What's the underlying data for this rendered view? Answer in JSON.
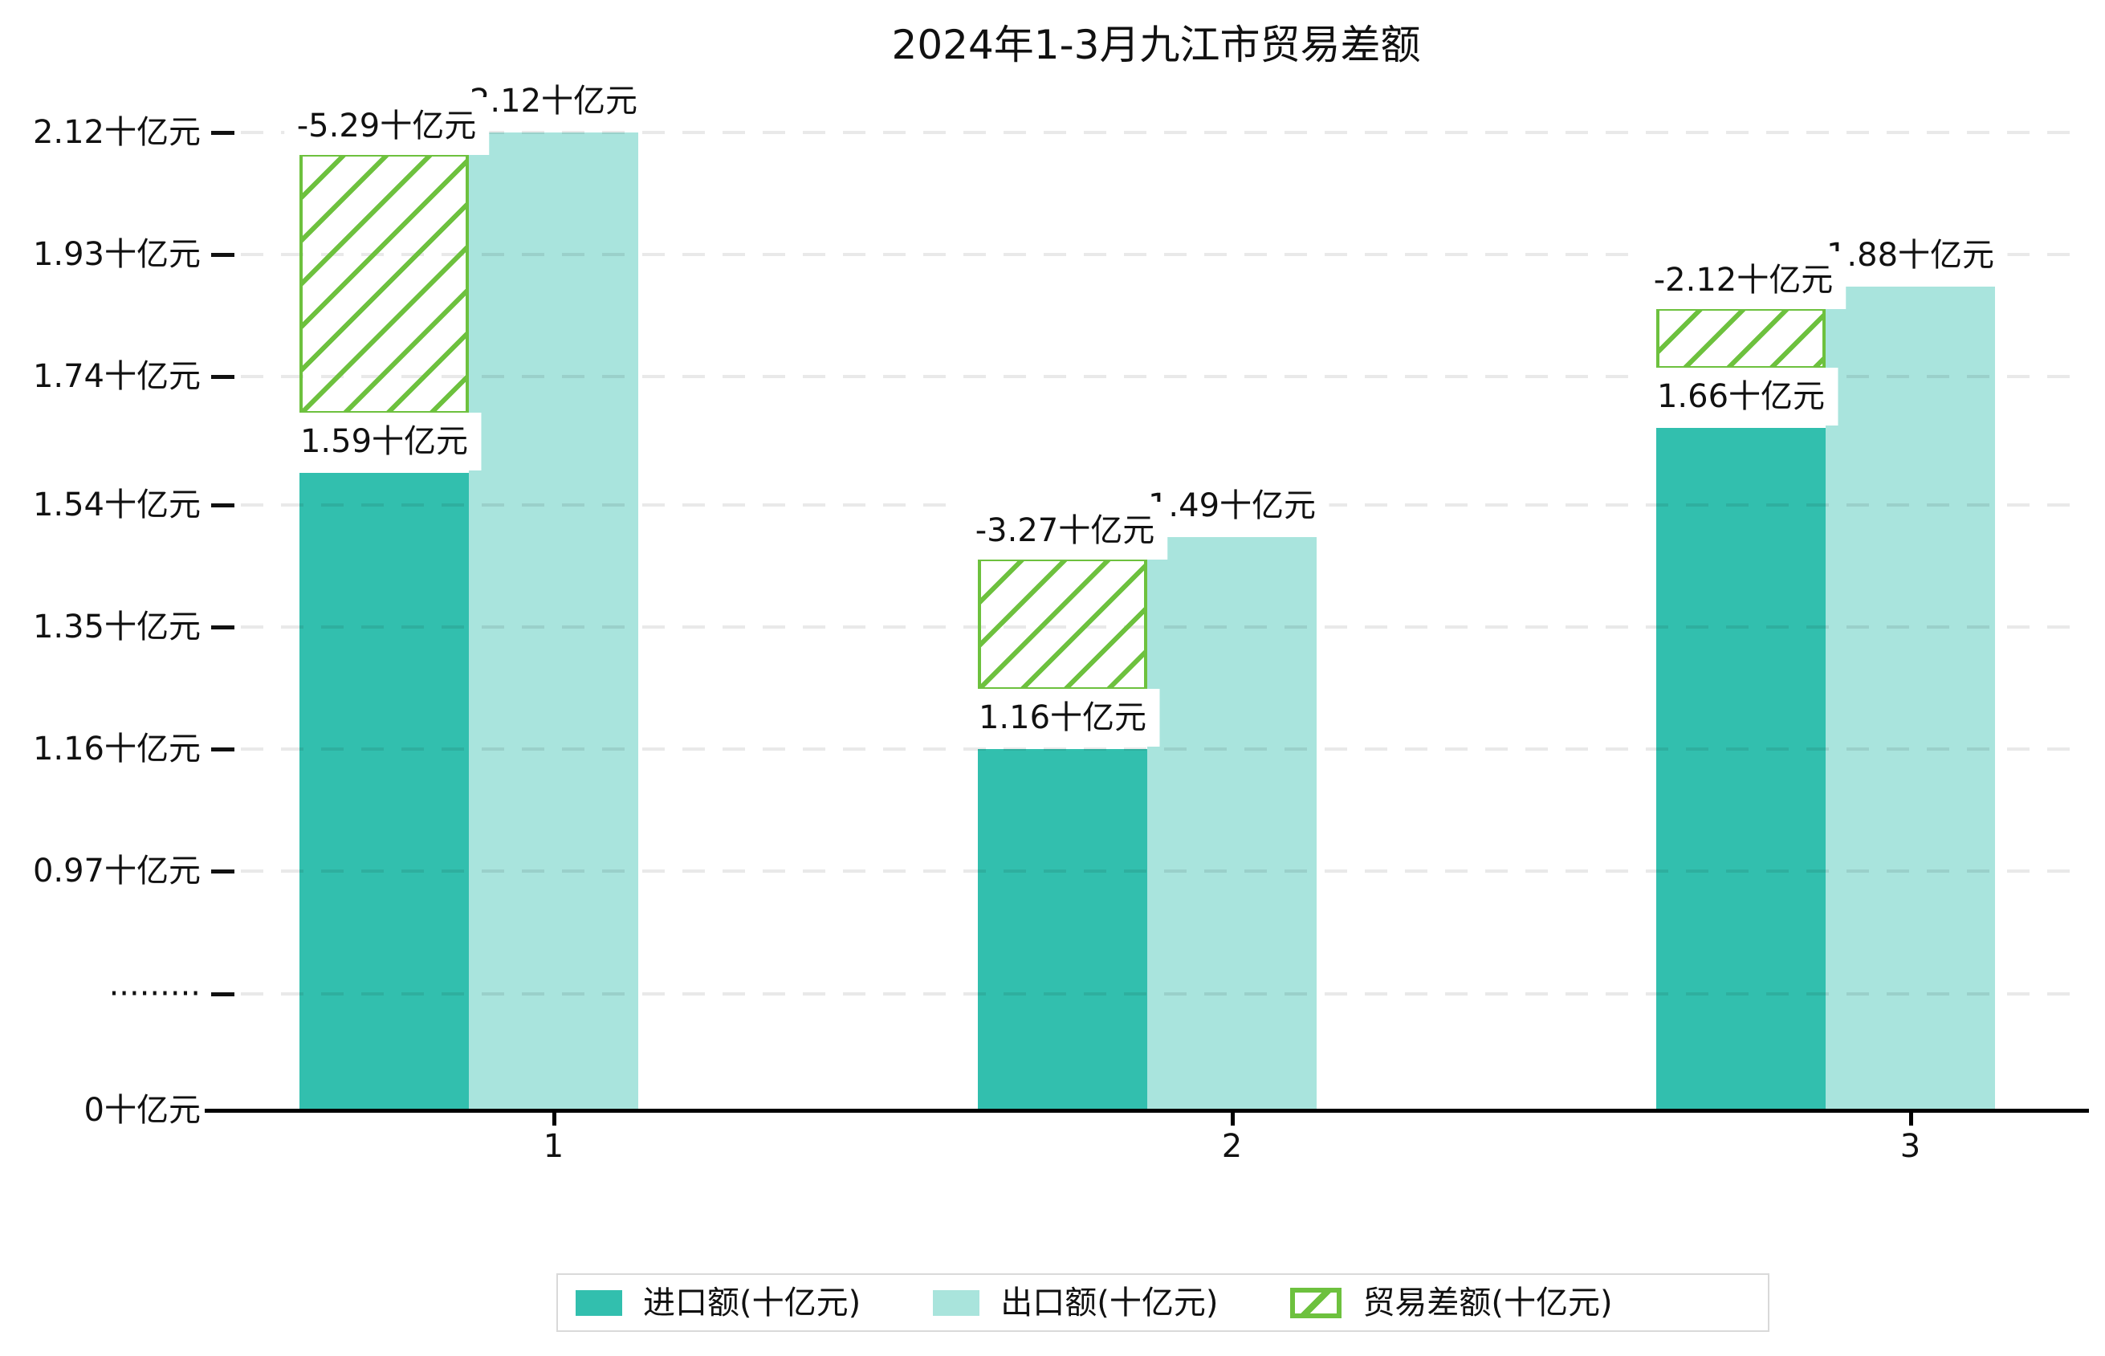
{
  "title": "2024年1-3月九江市贸易差额",
  "colors": {
    "import_bar": "#32bfae",
    "export_bar": "#a9e4dc",
    "export_bar_rgba": "rgba(50,191,174,0.42)",
    "trade_balance_green": "#6dc13e",
    "gridline": "rgba(0,0,0,0.085)",
    "axis": "#000000",
    "legend_border": "#d9d9d9",
    "text": "#111111"
  },
  "chart_data": {
    "type": "bar",
    "title": "2024年1-3月九江市贸易差额",
    "categories": [
      "1",
      "2",
      "3"
    ],
    "series": [
      {
        "name": "进口额(十亿元)",
        "role": "import",
        "values": [
          1.59,
          1.16,
          1.66
        ],
        "labels": [
          "1.59十亿元",
          "1.16十亿元",
          "1.66十亿元"
        ],
        "color": "#32bfae",
        "style": "solid"
      },
      {
        "name": "出口额(十亿元)",
        "role": "export",
        "values": [
          2.12,
          1.49,
          1.88
        ],
        "labels": [
          "2.12十亿元",
          "1.49十亿元",
          "1.88十亿元"
        ],
        "color": "#a9e4dc",
        "style": "solid-translucent"
      },
      {
        "name": "贸易差额(十亿元)",
        "role": "trade-balance",
        "values": [
          -5.29,
          -3.27,
          -2.12
        ],
        "labels": [
          "-5.29十亿元",
          "-3.27十亿元",
          "-2.12十亿元"
        ],
        "color": "#6dc13e",
        "style": "hatched",
        "note": "hatched span drawn between import top and export top"
      }
    ],
    "y_axis": {
      "unit": "十亿元",
      "broken_axis": true,
      "ticks": [
        {
          "label": "2.12十亿元",
          "value": 2.12
        },
        {
          "label": "1.93十亿元",
          "value": 1.93
        },
        {
          "label": "1.74十亿元",
          "value": 1.74
        },
        {
          "label": "1.54十亿元",
          "value": 1.54
        },
        {
          "label": "1.35十亿元",
          "value": 1.35
        },
        {
          "label": "1.16十亿元",
          "value": 1.16
        },
        {
          "label": "0.97十亿元",
          "value": 0.97
        },
        {
          "label": "·········",
          "value": "break"
        },
        {
          "label": "0十亿元",
          "value": 0
        }
      ]
    },
    "x_axis": {
      "tick_labels": [
        "1",
        "2",
        "3"
      ]
    },
    "legend": {
      "position": "bottom",
      "entries": [
        "进口额(十亿元)",
        "出口额(十亿元)",
        "贸易差额(十亿元)"
      ]
    },
    "grid": "dashed horizontal"
  }
}
